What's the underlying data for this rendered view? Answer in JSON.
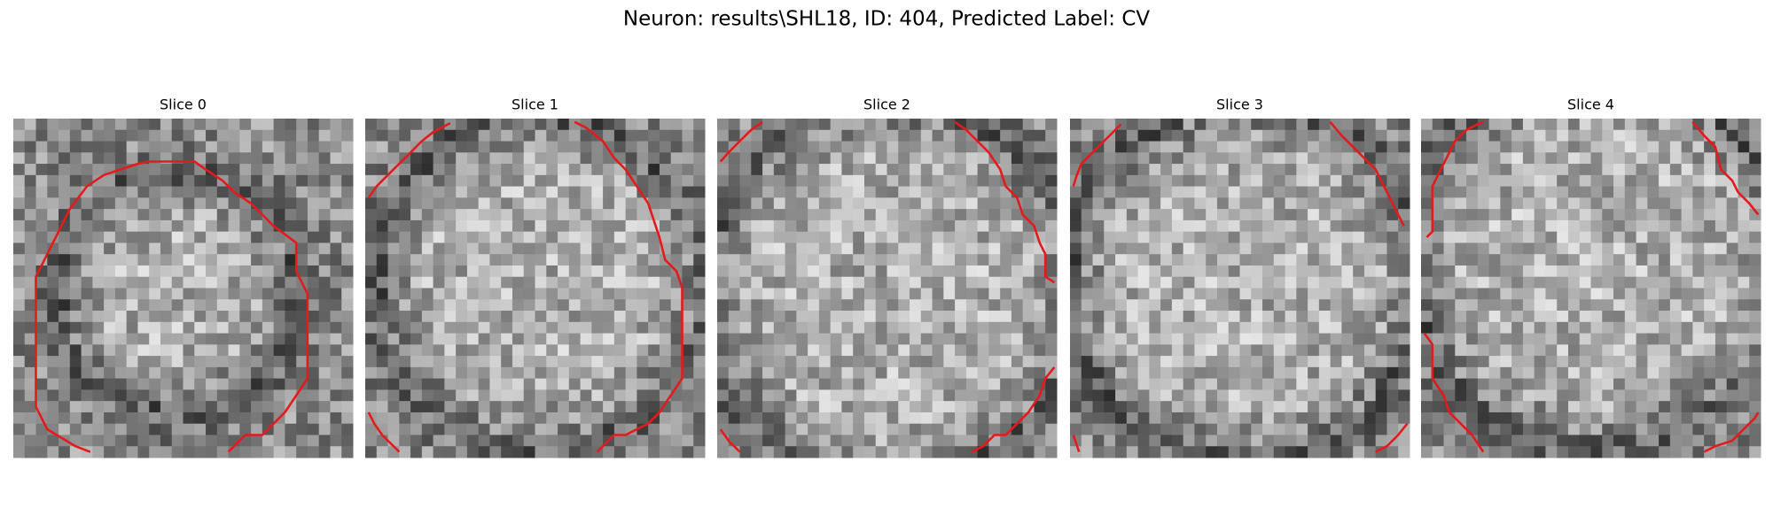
{
  "title": "Neuron: results\\SHL18, ID: 404, Predicted Label: CV",
  "panels": [
    {
      "title": "Slice 0"
    },
    {
      "title": "Slice 1"
    },
    {
      "title": "Slice 2"
    },
    {
      "title": "Slice 3"
    },
    {
      "title": "Slice 4"
    }
  ]
}
